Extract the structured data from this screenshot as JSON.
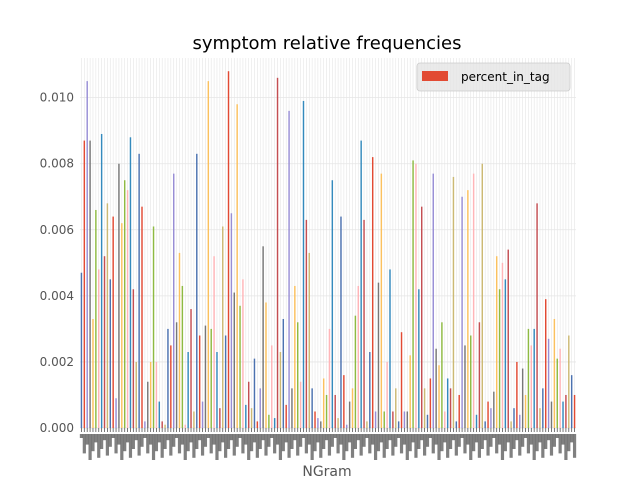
{
  "chart_data": {
    "type": "bar",
    "title": "symptom relative frequencies",
    "xlabel": "NGram",
    "ylabel": "",
    "ylim": [
      0,
      0.0112
    ],
    "yticks": [
      "0.000",
      "0.002",
      "0.004",
      "0.006",
      "0.008",
      "0.010"
    ],
    "ytick_values": [
      0,
      0.002,
      0.004,
      0.006,
      0.008,
      0.01
    ],
    "grid": true,
    "legend_position": "top-right",
    "series": [
      {
        "name": "percent_in_tag",
        "values": [
          0.0047,
          0.0087,
          0.0105,
          0.0087,
          0.0033,
          0.0066,
          0.0048,
          0.0089,
          0.0052,
          0.0068,
          0.0045,
          0.0064,
          0.0009,
          0.008,
          0.0062,
          0.0075,
          0.0072,
          0.0088,
          0.0042,
          0.002,
          0.0083,
          0.0067,
          0.0002,
          0.0014,
          0.002,
          0.0061,
          0.002,
          0.0008,
          0.0002,
          0.0001,
          0.003,
          0.0025,
          0.0077,
          0.0032,
          0.0053,
          0.0043,
          0.0001,
          0.0023,
          0.0036,
          0.0005,
          0.0083,
          0.0028,
          0.0008,
          0.0031,
          0.0105,
          0.003,
          0.0052,
          0.0023,
          0.0006,
          0.0061,
          0.0028,
          0.0108,
          0.0065,
          0.0041,
          0.0098,
          0.0037,
          0.0045,
          0.0007,
          0.0014,
          0.0006,
          0.0021,
          0.0002,
          0.0012,
          0.0055,
          0.0038,
          0.0004,
          0.0025,
          0.0003,
          0.0106,
          0.0023,
          0.0033,
          0.0007,
          0.0096,
          0.0012,
          0.0043,
          0.0032,
          0.0014,
          0.0099,
          0.0063,
          0.0053,
          0.0012,
          0.0005,
          0.0003,
          0.0002,
          0.0015,
          0.001,
          0.003,
          0.0075,
          0.001,
          0.0003,
          0.0064,
          0.0016,
          0.0001,
          0.0008,
          0.0012,
          0.0034,
          0.0043,
          0.0087,
          0.0063,
          0.0002,
          0.0023,
          0.0082,
          0.0005,
          0.0044,
          0.0077,
          0.0005,
          0.002,
          0.0048,
          0.0005,
          0.0012,
          0.0002,
          0.0029,
          0.0005,
          0.0005,
          0.0022,
          0.0081,
          0.008,
          0.0042,
          0.0067,
          0.0012,
          0.0004,
          0.0015,
          0.0077,
          0.0024,
          0.0019,
          0.0032,
          0.0005,
          0.0015,
          0.0012,
          0.0076,
          0.0002,
          0.001,
          0.007,
          0.0025,
          0.0072,
          0.0028,
          0.0077,
          0.0004,
          0.0032,
          0.008,
          0.0002,
          0.0008,
          0.0006,
          0.0011,
          0.0052,
          0.0042,
          0.005,
          0.0045,
          0.0054,
          0.0002,
          0.0006,
          0.002,
          0.0004,
          0.0018,
          0.001,
          0.003,
          0.0025,
          0.003,
          0.0068,
          0.0006,
          0.0012,
          0.0039,
          0.0027,
          0.0008,
          0.0033,
          0.0021,
          0.0024,
          0.0008,
          0.001,
          0.0028,
          0.0016,
          0.001
        ]
      }
    ],
    "bar_colors": [
      "#4c72b0",
      "#e24a33",
      "#988ed5",
      "#777777",
      "#fbc15e",
      "#8eba42",
      "#ffb5b8",
      "#348abd",
      "#c44e52",
      "#ccb974"
    ]
  },
  "legend_swatch_color": "#e24a33",
  "plot_background": "#ffffff",
  "grid_color": "#e5e5e5",
  "axis_text_color": "#555555"
}
